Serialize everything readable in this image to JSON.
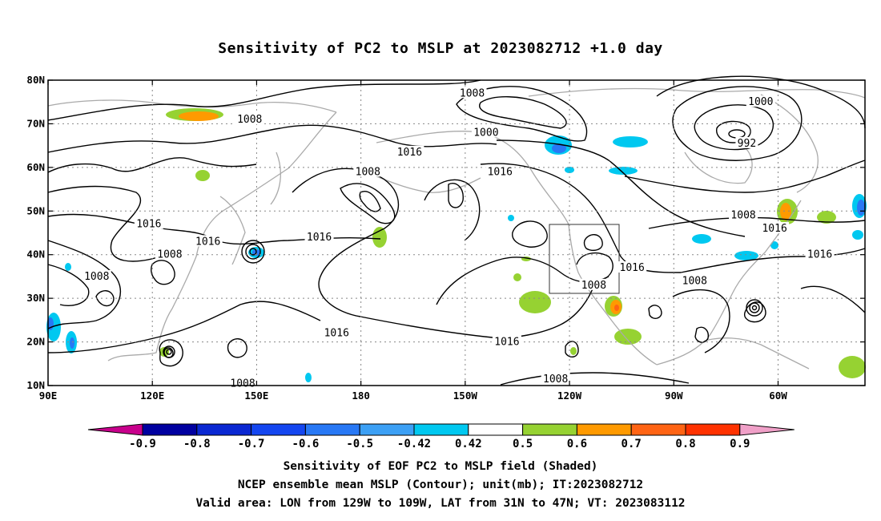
{
  "title": "Sensitivity of PC2 to MSLP at 2023082712 +1.0 day",
  "captions": [
    "Sensitivity of EOF PC2 to MSLP field (Shaded)",
    "NCEP ensemble mean MSLP (Contour); unit(mb); IT:2023082712",
    "Valid area: LON from 129W to 109W, LAT from 31N to 47N; VT: 2023083112"
  ],
  "chart_data": {
    "type": "heatmap",
    "title": "Sensitivity of PC2 to MSLP at 2023082712 +1.0 day",
    "x_ticks": [
      "90E",
      "120E",
      "150E",
      "180",
      "150W",
      "120W",
      "90W",
      "60W"
    ],
    "y_ticks": [
      "10N",
      "20N",
      "30N",
      "40N",
      "50N",
      "60N",
      "70N",
      "80N"
    ],
    "xlim": [
      90,
      325
    ],
    "ylim": [
      10,
      80
    ],
    "grid": true,
    "colorbar": {
      "labels": [
        "-0.9",
        "-0.8",
        "-0.7",
        "-0.6",
        "-0.5",
        "-0.42",
        "0.42",
        "0.5",
        "0.6",
        "0.7",
        "0.8",
        "0.9"
      ],
      "colors": [
        "#c8008c",
        "#0000a0",
        "#0a28d2",
        "#1446f0",
        "#2878f5",
        "#3ca0f5",
        "#00c8f0",
        "#ffffff",
        "#96d232",
        "#ff9a00",
        "#ff6414",
        "#ff3200",
        "#ff0000",
        "#f0a0c8"
      ]
    },
    "valid_box": {
      "lon": [
        -129,
        -109
      ],
      "lat": [
        31,
        47
      ]
    },
    "contour_labels": [
      {
        "text": "1008",
        "lon": 148,
        "lat": 71
      },
      {
        "text": "1008",
        "lon": 212,
        "lat": 77
      },
      {
        "text": "1000",
        "lon": 216,
        "lat": 68
      },
      {
        "text": "1016",
        "lon": 194,
        "lat": 63.5
      },
      {
        "text": "1016",
        "lon": 220,
        "lat": 59
      },
      {
        "text": "1008",
        "lon": 182,
        "lat": 59
      },
      {
        "text": "1000",
        "lon": 295,
        "lat": 75
      },
      {
        "text": "992",
        "lon": 291,
        "lat": 65.5
      },
      {
        "text": "1008",
        "lon": 290,
        "lat": 49
      },
      {
        "text": "1016",
        "lon": 299,
        "lat": 46
      },
      {
        "text": "1016",
        "lon": 312,
        "lat": 40
      },
      {
        "text": "1016",
        "lon": 119,
        "lat": 47
      },
      {
        "text": "1016",
        "lon": 136,
        "lat": 43
      },
      {
        "text": "1008",
        "lon": 125,
        "lat": 40
      },
      {
        "text": "1008",
        "lon": 104,
        "lat": 35
      },
      {
        "text": "1016",
        "lon": 168,
        "lat": 44
      },
      {
        "text": "1016",
        "lon": 173,
        "lat": 22
      },
      {
        "text": "1016",
        "lon": 222,
        "lat": 20
      },
      {
        "text": "1008",
        "lon": 247,
        "lat": 33
      },
      {
        "text": "1016",
        "lon": 258,
        "lat": 37
      },
      {
        "text": "1008",
        "lon": 276,
        "lat": 34
      },
      {
        "text": "1008",
        "lon": 236,
        "lat": 11.5
      },
      {
        "text": "1008",
        "lon": 146,
        "lat": 10.5
      }
    ]
  }
}
